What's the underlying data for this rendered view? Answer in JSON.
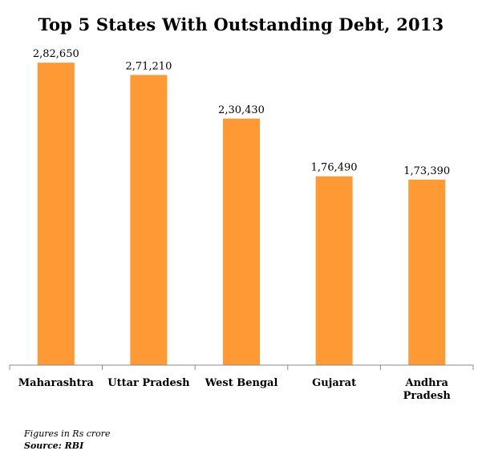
{
  "chart_data": {
    "type": "bar",
    "title": "Top 5 States With Outstanding Debt, 2013",
    "categories": [
      "Maharashtra",
      "Uttar Pradesh",
      "West Bengal",
      "Gujarat",
      "Andhra Pradesh"
    ],
    "values": [
      282650,
      271210,
      230430,
      176490,
      173390
    ],
    "value_labels": [
      "2,82,650",
      "2,71,210",
      "2,30,430",
      "1,76,490",
      "1,73,390"
    ],
    "xlabel": "",
    "ylabel": "",
    "ylim": [
      0,
      300000
    ],
    "grid": false,
    "legend": "none",
    "bar_color": "#FF9933"
  },
  "footnotes": {
    "units": "Figures in Rs crore",
    "source": "Source: RBI"
  }
}
